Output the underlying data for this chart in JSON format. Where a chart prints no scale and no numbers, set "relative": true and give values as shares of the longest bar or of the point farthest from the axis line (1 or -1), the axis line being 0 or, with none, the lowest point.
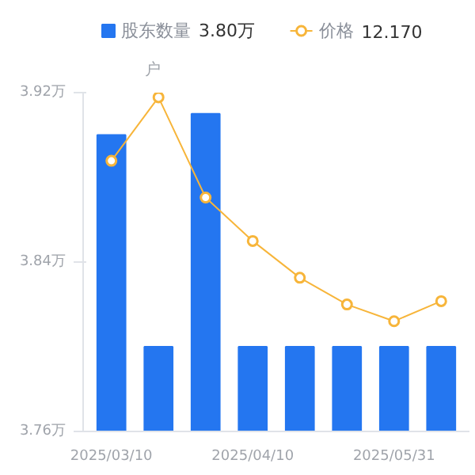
{
  "chart_data": [
    {
      "type": "bar",
      "ylabel": "户",
      "categories": [
        "2025/03/10",
        null,
        null,
        "2025/04/10",
        null,
        null,
        "2025/05/31",
        null
      ],
      "series": [
        {
          "name": "股东数量",
          "color": "#2476f0",
          "values": [
            3.9,
            3.8,
            3.91,
            3.8,
            3.8,
            3.8,
            3.8,
            3.8
          ]
        }
      ],
      "annotations": [
        "3.80万"
      ],
      "ylim": [
        3.76,
        3.92
      ],
      "yticks": [
        {
          "value": 3.76,
          "label": "3.76万"
        },
        {
          "value": 3.84,
          "label": "3.84万"
        },
        {
          "value": 3.92,
          "label": "3.92万"
        }
      ],
      "legend": "top left",
      "grid": false
    },
    {
      "type": "line",
      "relative": true,
      "categories": [
        "2025/03/10",
        null,
        null,
        "2025/04/10",
        null,
        null,
        "2025/05/31",
        null
      ],
      "series": [
        {
          "name": "价格",
          "color": "#f7b53a",
          "values": [
            0.81,
            1,
            0.7,
            0.57,
            0.46,
            0.38,
            0.33,
            0.39
          ]
        }
      ],
      "annotations": [
        "12.170"
      ],
      "tick_labels": false,
      "legend": "top",
      "marker": "circle"
    }
  ]
}
